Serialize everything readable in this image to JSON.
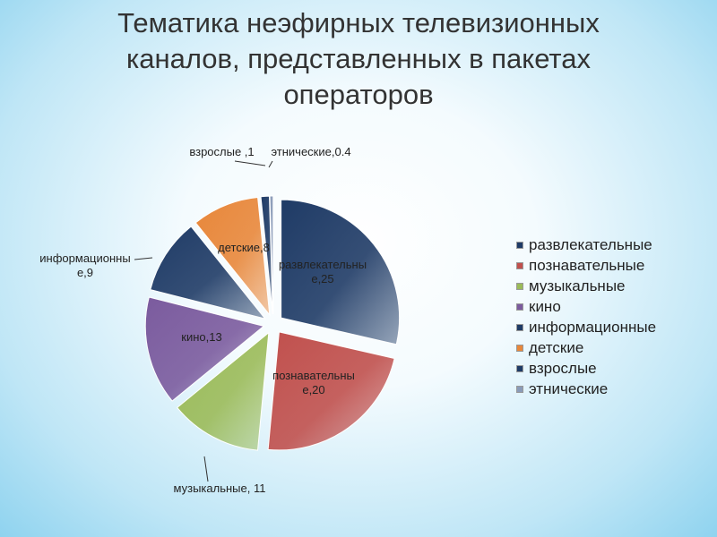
{
  "chart_data": {
    "type": "pie",
    "title": "Тематика неэфирных телевизионных каналов, представленных в пакетах операторов",
    "categories": [
      "развлекательные",
      "познавательные",
      "музыкальные",
      "кино",
      "информационные",
      "детские",
      "взрослые",
      "этнические"
    ],
    "values": [
      25,
      20,
      11,
      13,
      9,
      8,
      1,
      0.4
    ],
    "value_labels": [
      "развлекательные,25",
      "познавательные,20",
      "музыкальные, 11",
      "кино,13",
      "информационные,9",
      "детские,8",
      "взрослые ,1",
      "этнические,0.4"
    ],
    "colors": [
      "#1f3b66",
      "#c0504d",
      "#9bbb59",
      "#7b5b9e",
      "#1f3b66",
      "#e8873a",
      "#1f3b66",
      "#8a9bb8"
    ],
    "legend": "right"
  }
}
